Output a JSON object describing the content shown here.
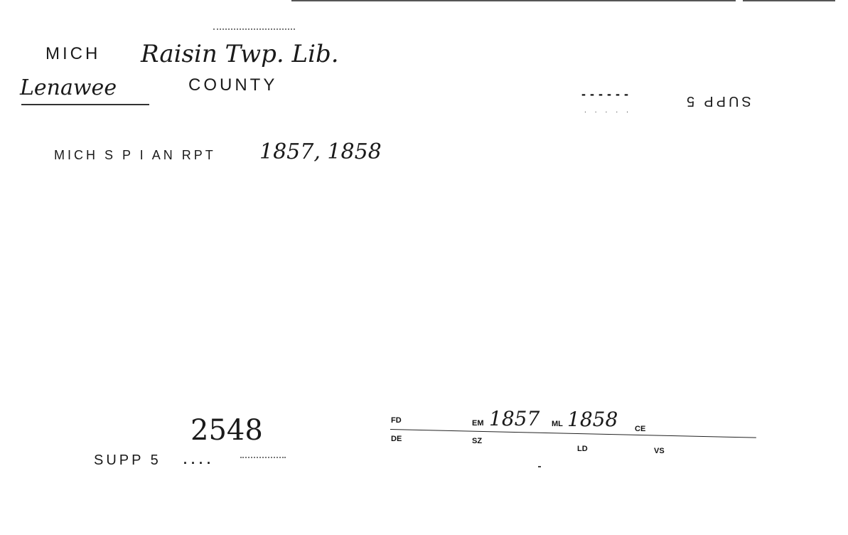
{
  "card": {
    "state_abbrev": "MICH",
    "library_name": "Raisin Twp. Lib.",
    "county_name": "Lenawee",
    "county_label": "COUNTY",
    "source_typed": "MICH S P I AN RPT",
    "source_years": "1857, 1858",
    "supp_code_upside_down": "SUPP 5",
    "card_number": "2548",
    "supp_label": "SUPP 5"
  },
  "fields": {
    "fd_label": "FD",
    "de_label": "DE",
    "em_label": "EM",
    "em_value": "1857",
    "ml_label": "ML",
    "ml_value": "1858",
    "ce_label": "CE",
    "sz_label": "SZ",
    "ld_label": "LD",
    "vs_label": "VS"
  }
}
